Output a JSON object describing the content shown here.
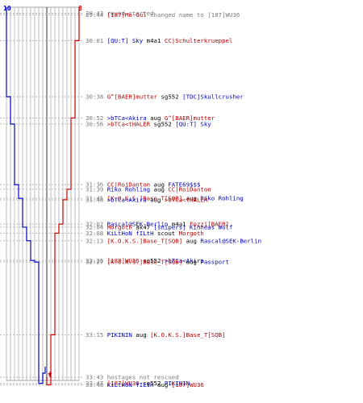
{
  "header": {
    "left_score": "10",
    "right_score": "8"
  },
  "colors": {
    "blue_team": "#0000cc",
    "red_team": "#cc0000",
    "time": "#7a7a7a",
    "grid": "#a0a0a0",
    "black": "#000000"
  },
  "events": [
    {
      "time": "29:43",
      "parts": [
        {
          "text": "round started",
          "color": "gray"
        }
      ]
    },
    {
      "time": "29:44",
      "parts": [
        {
          "text": "[187]Mo-Gul",
          "color": "red"
        },
        {
          "text": " changed name to ",
          "color": "gray"
        },
        {
          "text": "[187]WU36",
          "color": "gray"
        }
      ]
    },
    {
      "time": "30:01",
      "parts": [
        {
          "text": "[QU:T] Sky",
          "color": "blue"
        },
        {
          "text": " m4a1 ",
          "color": "black"
        },
        {
          "text": "CC|Schulterkrueppel",
          "color": "red"
        }
      ]
    },
    {
      "time": "30:38",
      "parts": [
        {
          "text": "G^[BAER]mutter",
          "color": "red"
        },
        {
          "text": " sg552 ",
          "color": "black"
        },
        {
          "text": "[TDC]Skullcrusher",
          "color": "blue"
        }
      ]
    },
    {
      "time": "30:52",
      "parts": [
        {
          "text": ">bTCa<Akira",
          "color": "blue"
        },
        {
          "text": " aug ",
          "color": "black"
        },
        {
          "text": "G^[BAER]mutter",
          "color": "red"
        }
      ]
    },
    {
      "time": "30:56",
      "parts": [
        {
          "text": ">bTCa<tHALER",
          "color": "red"
        },
        {
          "text": " sg552 ",
          "color": "black"
        },
        {
          "text": "[QU:T] Sky",
          "color": "blue"
        }
      ]
    },
    {
      "time": "31:36",
      "parts": [
        {
          "text": "CC|RoiDanton",
          "color": "red"
        },
        {
          "text": " aug ",
          "color": "black"
        },
        {
          "text": "FATE69$$$",
          "color": "blue"
        }
      ]
    },
    {
      "time": "31:39",
      "parts": [
        {
          "text": "Riko Rohling",
          "color": "blue"
        },
        {
          "text": " aug ",
          "color": "black"
        },
        {
          "text": "CC|RoiDanton",
          "color": "red"
        }
      ]
    },
    {
      "time": "31:45",
      "parts": [
        {
          "text": "[K.O.K.S.]Base_T[SQB]",
          "color": "red"
        },
        {
          "text": " aug ",
          "color": "black"
        },
        {
          "text": "Riko Rohling",
          "color": "blue"
        }
      ]
    },
    {
      "time": "31:46",
      "parts": [
        {
          "text": ">bTCa<Akira",
          "color": "blue"
        },
        {
          "text": " aug ",
          "color": "black"
        },
        {
          "text": ">bTCa<tHALER",
          "color": "red"
        }
      ]
    },
    {
      "time": "32:02",
      "parts": [
        {
          "text": "Rascal@SEK-Berlin",
          "color": "blue"
        },
        {
          "text": " m4a1 ",
          "color": "black"
        },
        {
          "text": "Fozzi[BAER]",
          "color": "red"
        }
      ]
    },
    {
      "time": "32:04",
      "parts": [
        {
          "text": "Morgoth",
          "color": "red"
        },
        {
          "text": " ak47 ",
          "color": "black"
        },
        {
          "text": "[snipers] Kinneas Wolf",
          "color": "blue"
        }
      ]
    },
    {
      "time": "32:08",
      "parts": [
        {
          "text": "KiLtHoN fILtH",
          "color": "blue"
        },
        {
          "text": " scout ",
          "color": "black"
        },
        {
          "text": "Morgoth",
          "color": "red"
        }
      ]
    },
    {
      "time": "32:13",
      "parts": [
        {
          "text": "[K.O.K.S.]Base_T[SQB]",
          "color": "red"
        },
        {
          "text": " aug ",
          "color": "black"
        },
        {
          "text": "Rascal@SEK-Berlin",
          "color": "blue"
        }
      ]
    },
    {
      "time": "32:26",
      "parts": [
        {
          "text": "[187]WU36",
          "color": "red"
        },
        {
          "text": " sg552 ",
          "color": "black"
        },
        {
          "text": ">bTCa<Akira",
          "color": "blue"
        }
      ]
    },
    {
      "time": "32:27",
      "parts": [
        {
          "text": "[K.O.K.S.]Base_T[SQB]",
          "color": "red"
        },
        {
          "text": " aug ",
          "color": "black"
        },
        {
          "text": "Passport",
          "color": "blue"
        }
      ]
    },
    {
      "time": "33:15",
      "parts": [
        {
          "text": "PIKININ",
          "color": "blue"
        },
        {
          "text": " aug ",
          "color": "black"
        },
        {
          "text": "[K.O.K.S.]Base_T[SQB]",
          "color": "red"
        }
      ]
    },
    {
      "time": "33:43",
      "parts": [
        {
          "text": "hostages not rescued",
          "color": "gray"
        }
      ]
    },
    {
      "time": "33:47",
      "parts": [
        {
          "text": "[187]WU36",
          "color": "red"
        },
        {
          "text": " sg552 ",
          "color": "black"
        },
        {
          "text": "PIKININ",
          "color": "blue"
        }
      ]
    },
    {
      "time": "33:48",
      "parts": [
        {
          "text": "KiLtHoN fILtH",
          "color": "blue"
        },
        {
          "text": " aug ",
          "color": "black"
        },
        {
          "text": "[187]WU36",
          "color": "red"
        }
      ]
    }
  ]
}
